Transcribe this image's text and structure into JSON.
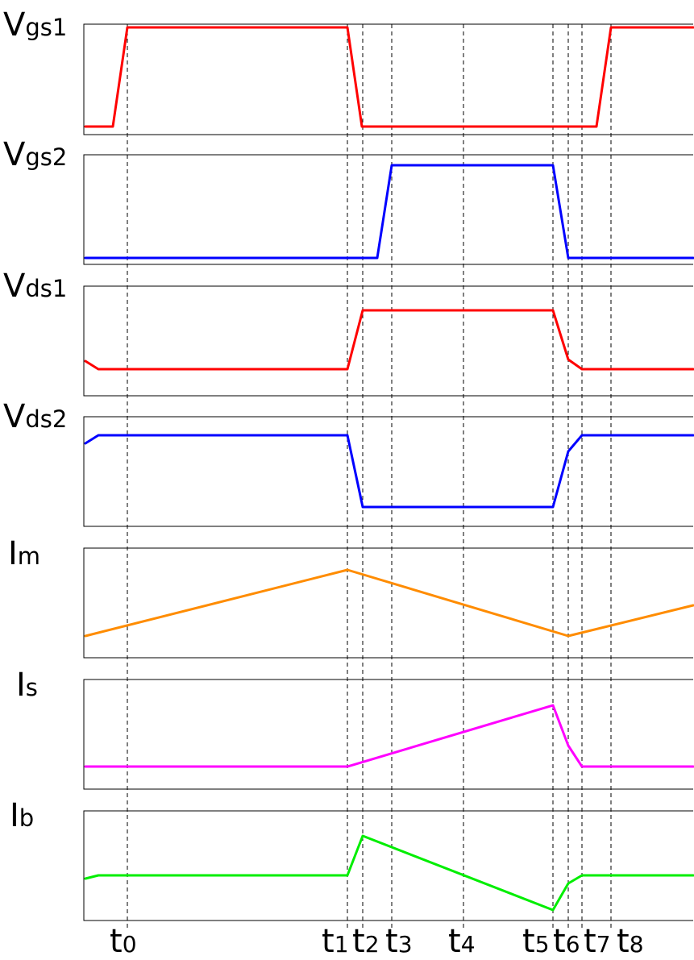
{
  "signals": [
    {
      "main": "V",
      "sub": "gs1",
      "color": "#ff0000"
    },
    {
      "main": "V",
      "sub": "gs2",
      "color": "#0000ff"
    },
    {
      "main": "V",
      "sub": "ds1",
      "color": "#ff0000"
    },
    {
      "main": "V",
      "sub": "ds2",
      "color": "#0000ff"
    },
    {
      "main": "I",
      "sub": "m",
      "color": "#ff8c00"
    },
    {
      "main": "I",
      "sub": "s",
      "color": "#ff00ff"
    },
    {
      "main": "I",
      "sub": "b",
      "color": "#00ee00"
    }
  ],
  "time_markers": [
    {
      "main": "t",
      "sub": "0"
    },
    {
      "main": "t",
      "sub": "1"
    },
    {
      "main": "t",
      "sub": "2"
    },
    {
      "main": "t",
      "sub": "3"
    },
    {
      "main": "t",
      "sub": "4"
    },
    {
      "main": "t",
      "sub": "5"
    },
    {
      "main": "t",
      "sub": "6"
    },
    {
      "main": "t",
      "sub": "7"
    },
    {
      "main": "t",
      "sub": "8"
    }
  ]
}
